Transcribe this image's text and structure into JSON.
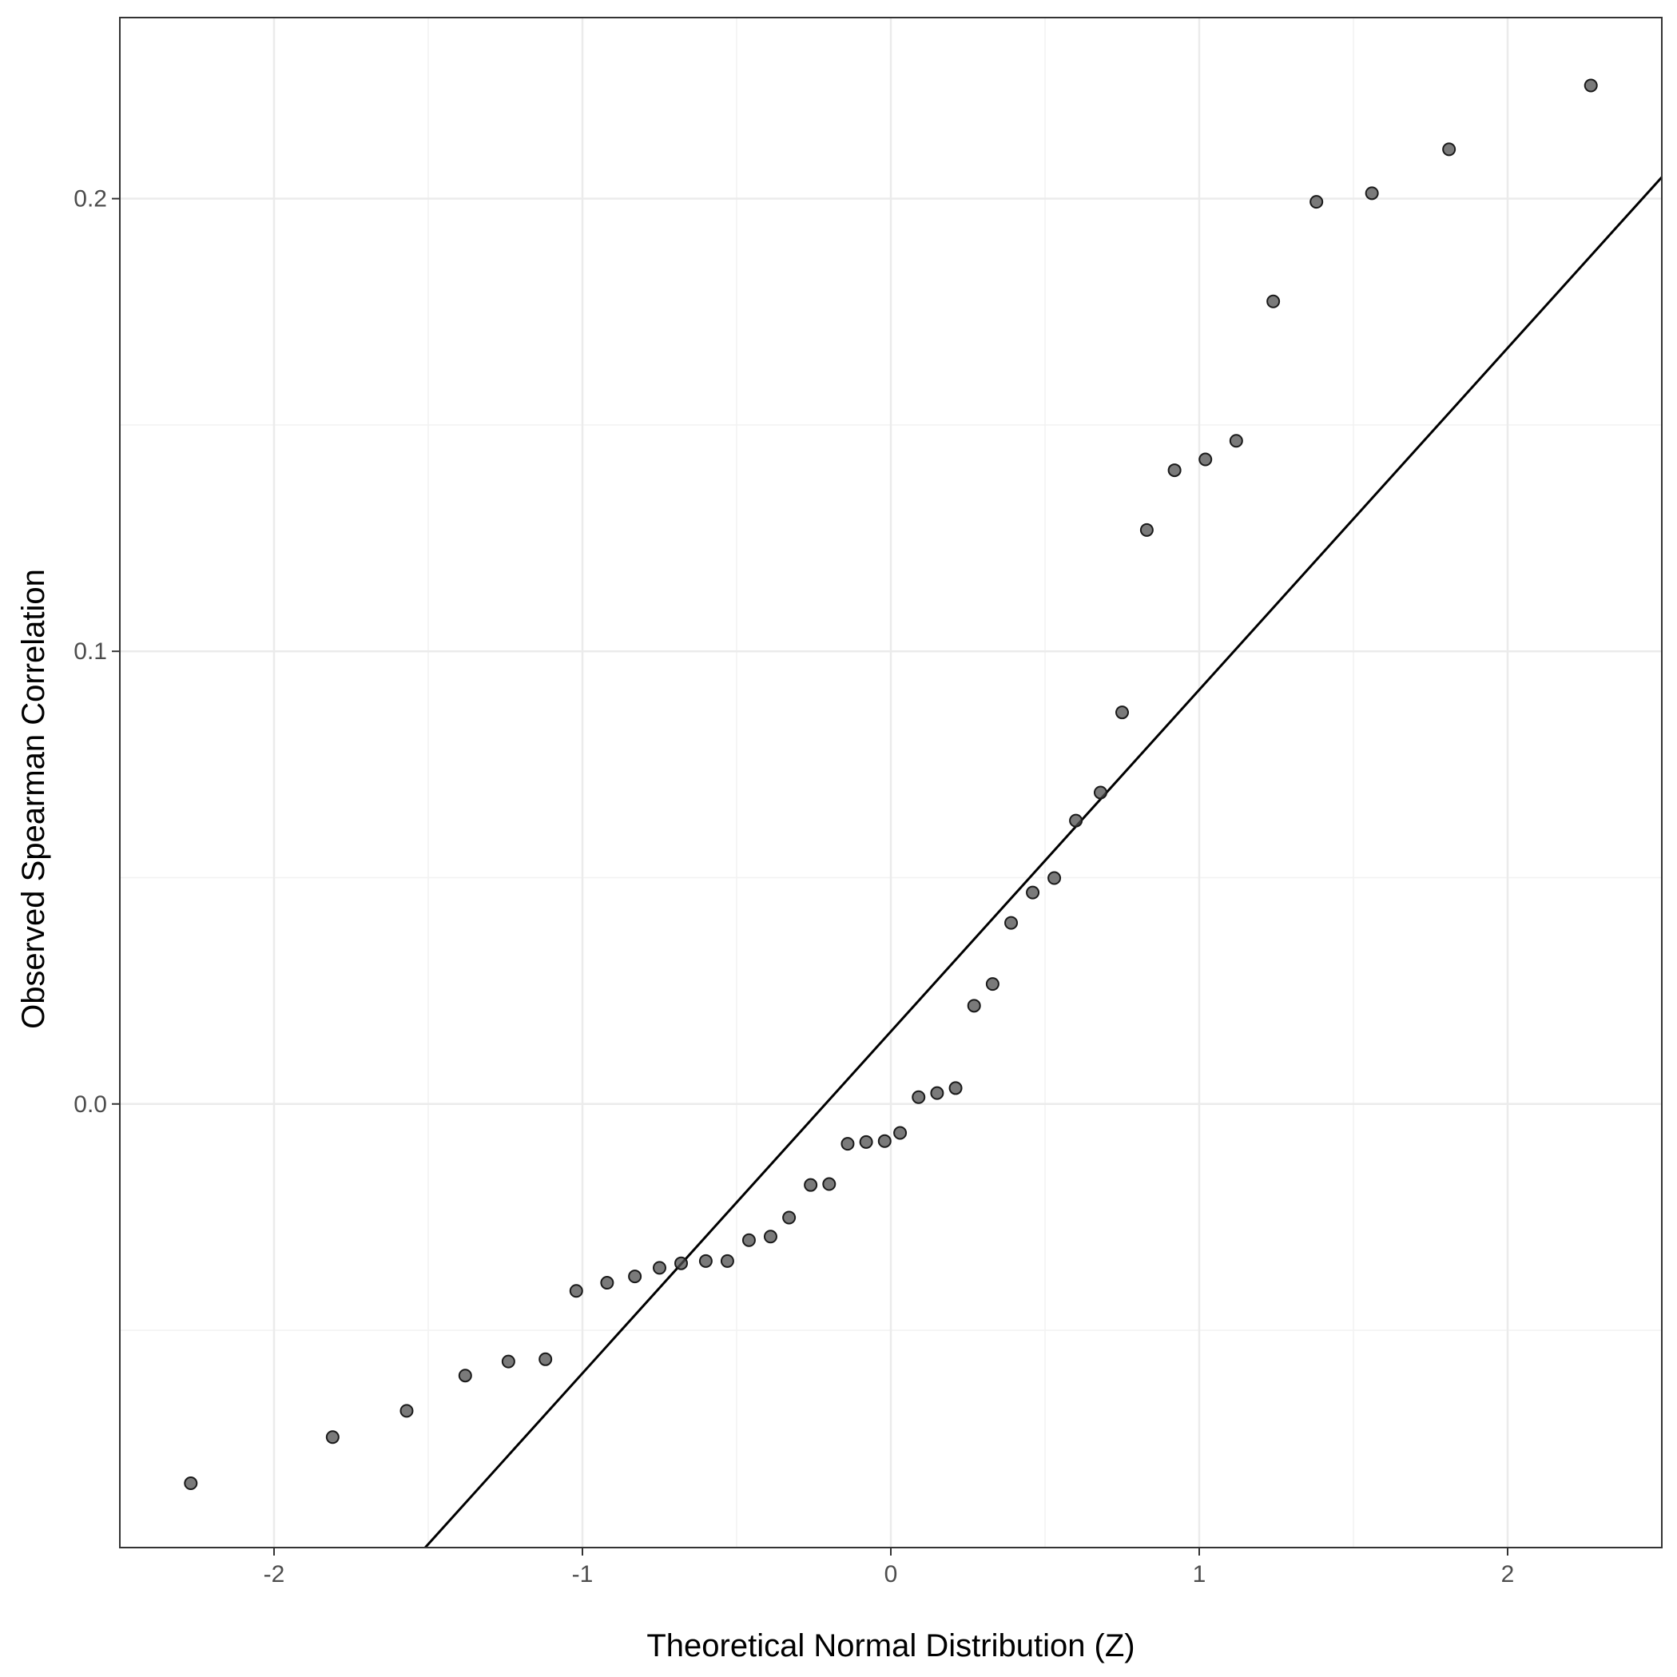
{
  "chart_data": {
    "type": "scatter",
    "title": "",
    "xlabel": "Theoretical Normal Distribution (Z)",
    "ylabel": "Observed Spearman Correlation",
    "xlim": [
      -2.5,
      2.5
    ],
    "ylim": [
      -0.098,
      0.24
    ],
    "x_ticks": [
      -2,
      -1,
      0,
      1,
      2
    ],
    "x_tick_labels": [
      "-2",
      "-1",
      "0",
      "1",
      "2"
    ],
    "y_ticks": [
      0.0,
      0.1,
      0.2
    ],
    "y_tick_labels": [
      "0.0",
      "0.1",
      "0.2"
    ],
    "grid": true,
    "legend": "none",
    "point_color": "#4d4d4d",
    "line_color": "#000000",
    "points": {
      "x": [
        -2.27,
        -1.81,
        -1.57,
        -1.38,
        -1.24,
        -1.12,
        -1.02,
        -0.92,
        -0.83,
        -0.75,
        -0.68,
        -0.6,
        -0.53,
        -0.46,
        -0.39,
        -0.33,
        -0.26,
        -0.2,
        -0.14,
        -0.08,
        -0.02,
        0.03,
        0.09,
        0.15,
        0.21,
        0.27,
        0.33,
        0.39,
        0.46,
        0.53,
        0.6,
        0.68,
        0.75,
        0.83,
        0.92,
        1.02,
        1.12,
        1.24,
        1.38,
        1.56,
        1.81,
        2.27
      ],
      "y": [
        -0.0838,
        -0.0736,
        -0.0678,
        -0.06,
        -0.0569,
        -0.0564,
        -0.0413,
        -0.0395,
        -0.0381,
        -0.0362,
        -0.0352,
        -0.0347,
        -0.0347,
        -0.0301,
        -0.0293,
        -0.0251,
        -0.0179,
        -0.0177,
        -0.0088,
        -0.0084,
        -0.0082,
        -0.0064,
        0.0015,
        0.0024,
        0.0035,
        0.0217,
        0.0265,
        0.04,
        0.0467,
        0.0499,
        0.0626,
        0.0688,
        0.0865,
        0.1268,
        0.14,
        0.1424,
        0.1465,
        0.1773,
        0.1993,
        0.2012,
        0.2109,
        0.225
      ]
    },
    "reference_line": {
      "intercept": 0.016,
      "slope": 0.0755
    }
  }
}
